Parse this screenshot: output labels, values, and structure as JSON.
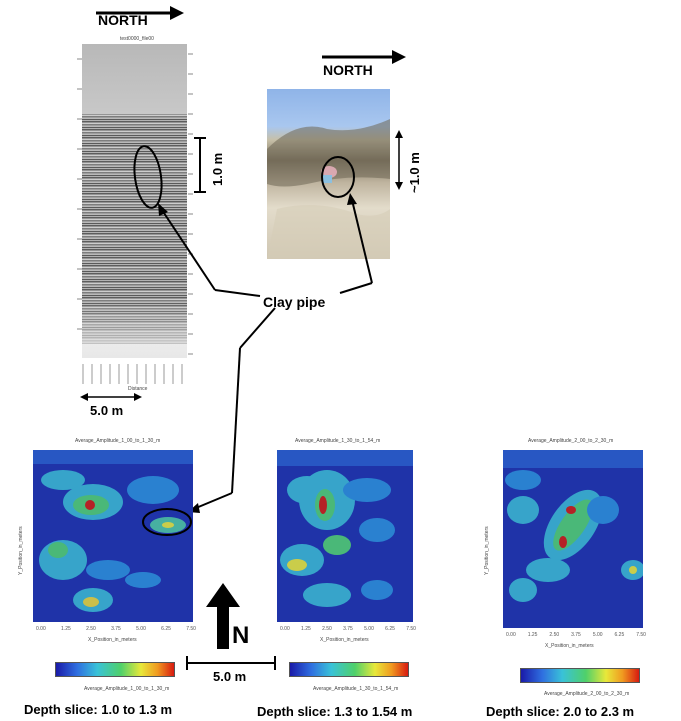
{
  "gpr_panel": {
    "north_label": "NORTH",
    "file_label": "test0000_file00",
    "depth_scale": "1.0 m",
    "distance_scale": "5.0 m",
    "x_axis_label": "Distance"
  },
  "photo_panel": {
    "north_label": "NORTH",
    "depth_scale": "~1.0 m"
  },
  "annotation": {
    "clay_pipe": "Clay pipe"
  },
  "slices": [
    {
      "header": "Average_Amplitude_1_00_to_1_30_m",
      "y_axis_label": "Y_Position_in_meters",
      "x_axis_label": "X_Position_in_meters",
      "colorbar_label": "Average_Amplitude_1_00_to_1_30_m",
      "caption": "Depth slice: 1.0 to 1.3 m"
    },
    {
      "header": "Average_Amplitude_1_30_to_1_54_m",
      "y_axis_label": "",
      "x_axis_label": "X_Position_in_meters",
      "colorbar_label": "Average_Amplitude_1_30_to_1_54_m",
      "caption": "Depth slice: 1.3 to 1.54 m"
    },
    {
      "header": "Average_Amplitude_2_00_to_2_30_m",
      "y_axis_label": "Y_Position_in_meters",
      "x_axis_label": "X_Position_in_meters",
      "colorbar_label": "Average_Amplitude_2_00_to_2_30_m",
      "caption": "Depth slice: 2.0 to 2.3 m"
    }
  ],
  "north_arrow": {
    "letter": "N",
    "scale": "5.0 m"
  },
  "colors": {
    "arrow": "#000000",
    "slice_background": "#1f33a8",
    "hot_spot": "#e02010"
  }
}
